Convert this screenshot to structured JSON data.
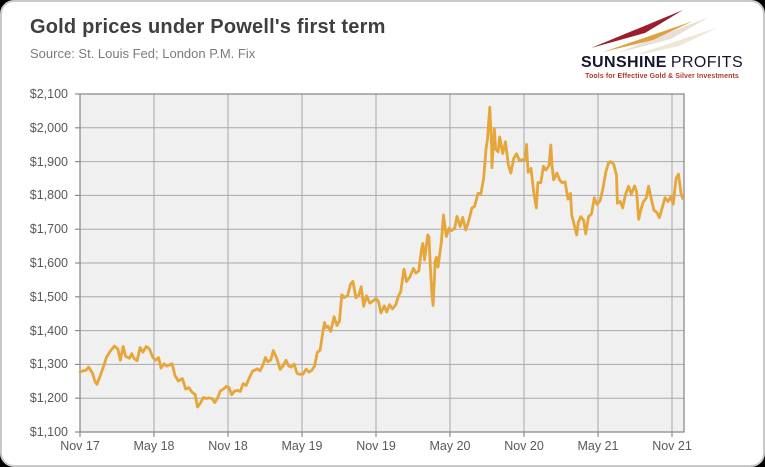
{
  "header": {
    "title": "Gold prices under Powell's first term",
    "source": "Source: St. Louis Fed; London P.M. Fix"
  },
  "logo": {
    "name_bold": "SUNSHINE",
    "name_regular": "PROFITS",
    "tagline": "Tools for Effective Gold & Silver Investments",
    "colors": {
      "maroon": "#9b1d2e",
      "gold": "#d9a441",
      "navy": "#15152e",
      "tagline_red": "#b23a2f"
    }
  },
  "chart_data": {
    "type": "line",
    "title": "Gold prices under Powell's first term",
    "xlabel": "",
    "ylabel": "",
    "ylim": [
      1100,
      2100
    ],
    "ytick_step": 100,
    "ytick_labels": [
      "$2,100",
      "$2,000",
      "$1,900",
      "$1,800",
      "$1,700",
      "$1,600",
      "$1,500",
      "$1,400",
      "$1,300",
      "$1,200",
      "$1,100"
    ],
    "xtick_labels": [
      "Nov 17",
      "May 18",
      "Nov 18",
      "May 19",
      "Nov 19",
      "May 20",
      "Nov 20",
      "May 21",
      "Nov 21"
    ],
    "x_encoding": "months since Nov 2017, ticks every 6 months",
    "x_range": [
      0,
      48.9
    ],
    "grid": true,
    "legend": "none",
    "colors": {
      "line": "#E6A63A",
      "plot_bg": "#F0F0F0",
      "grid": "#A9A9A9",
      "frame": "#8C8C8C",
      "axis_text": "#595959"
    },
    "points": [
      [
        0,
        1277
      ],
      [
        0.23,
        1281
      ],
      [
        0.47,
        1282
      ],
      [
        0.7,
        1292
      ],
      [
        1,
        1275
      ],
      [
        1.23,
        1248
      ],
      [
        1.37,
        1241
      ],
      [
        1.63,
        1265
      ],
      [
        1.93,
        1296
      ],
      [
        2.13,
        1320
      ],
      [
        2.47,
        1340
      ],
      [
        2.8,
        1354
      ],
      [
        3.07,
        1345
      ],
      [
        3.27,
        1312
      ],
      [
        3.5,
        1353
      ],
      [
        3.7,
        1324
      ],
      [
        4,
        1318
      ],
      [
        4.2,
        1332
      ],
      [
        4.37,
        1318
      ],
      [
        4.63,
        1311
      ],
      [
        4.87,
        1350
      ],
      [
        5.1,
        1336
      ],
      [
        5.37,
        1353
      ],
      [
        5.63,
        1346
      ],
      [
        5.9,
        1321
      ],
      [
        6.13,
        1312
      ],
      [
        6.37,
        1320
      ],
      [
        6.57,
        1289
      ],
      [
        6.83,
        1302
      ],
      [
        7.03,
        1295
      ],
      [
        7.27,
        1299
      ],
      [
        7.47,
        1302
      ],
      [
        7.7,
        1267
      ],
      [
        7.97,
        1251
      ],
      [
        8.3,
        1258
      ],
      [
        8.57,
        1227
      ],
      [
        8.83,
        1231
      ],
      [
        9.07,
        1218
      ],
      [
        9.33,
        1211
      ],
      [
        9.53,
        1174
      ],
      [
        9.8,
        1188
      ],
      [
        10,
        1202
      ],
      [
        10.23,
        1199
      ],
      [
        10.47,
        1201
      ],
      [
        10.7,
        1199
      ],
      [
        10.93,
        1187
      ],
      [
        11.17,
        1202
      ],
      [
        11.37,
        1221
      ],
      [
        11.63,
        1227
      ],
      [
        11.87,
        1235
      ],
      [
        12.07,
        1232
      ],
      [
        12.3,
        1210
      ],
      [
        12.53,
        1221
      ],
      [
        12.77,
        1223
      ],
      [
        13,
        1220
      ],
      [
        13.23,
        1243
      ],
      [
        13.47,
        1238
      ],
      [
        13.7,
        1258
      ],
      [
        14,
        1281
      ],
      [
        14.13,
        1282
      ],
      [
        14.37,
        1287
      ],
      [
        14.6,
        1281
      ],
      [
        14.83,
        1298
      ],
      [
        15.03,
        1320
      ],
      [
        15.23,
        1308
      ],
      [
        15.47,
        1313
      ],
      [
        15.67,
        1341
      ],
      [
        15.93,
        1320
      ],
      [
        16.23,
        1285
      ],
      [
        16.47,
        1296
      ],
      [
        16.7,
        1312
      ],
      [
        16.93,
        1295
      ],
      [
        17.13,
        1292
      ],
      [
        17.37,
        1301
      ],
      [
        17.6,
        1273
      ],
      [
        17.77,
        1271
      ],
      [
        18.07,
        1271
      ],
      [
        18.33,
        1286
      ],
      [
        18.57,
        1277
      ],
      [
        18.8,
        1283
      ],
      [
        19.03,
        1296
      ],
      [
        19.23,
        1335
      ],
      [
        19.47,
        1342
      ],
      [
        19.7,
        1399
      ],
      [
        19.83,
        1424
      ],
      [
        19.93,
        1409
      ],
      [
        20.1,
        1413
      ],
      [
        20.33,
        1398
      ],
      [
        20.6,
        1441
      ],
      [
        20.83,
        1415
      ],
      [
        21.03,
        1427
      ],
      [
        21.23,
        1506
      ],
      [
        21.43,
        1498
      ],
      [
        21.7,
        1503
      ],
      [
        21.93,
        1537
      ],
      [
        22.13,
        1546
      ],
      [
        22.37,
        1497
      ],
      [
        22.6,
        1504
      ],
      [
        22.8,
        1530
      ],
      [
        23,
        1472
      ],
      [
        23.23,
        1503
      ],
      [
        23.5,
        1481
      ],
      [
        23.73,
        1487
      ],
      [
        24,
        1495
      ],
      [
        24.2,
        1486
      ],
      [
        24.4,
        1452
      ],
      [
        24.67,
        1473
      ],
      [
        24.87,
        1455
      ],
      [
        25.1,
        1477
      ],
      [
        25.33,
        1464
      ],
      [
        25.6,
        1476
      ],
      [
        25.8,
        1500
      ],
      [
        26,
        1515
      ],
      [
        26.27,
        1582
      ],
      [
        26.47,
        1545
      ],
      [
        26.73,
        1558
      ],
      [
        27.03,
        1584
      ],
      [
        27.23,
        1570
      ],
      [
        27.47,
        1577
      ],
      [
        27.7,
        1643
      ],
      [
        27.8,
        1658
      ],
      [
        27.93,
        1609
      ],
      [
        28.2,
        1683
      ],
      [
        28.3,
        1676
      ],
      [
        28.4,
        1590
      ],
      [
        28.53,
        1509
      ],
      [
        28.63,
        1474
      ],
      [
        28.8,
        1605
      ],
      [
        28.9,
        1617
      ],
      [
        29.03,
        1588
      ],
      [
        29.3,
        1662
      ],
      [
        29.47,
        1742
      ],
      [
        29.7,
        1678
      ],
      [
        29.93,
        1703
      ],
      [
        30.13,
        1696
      ],
      [
        30.37,
        1702
      ],
      [
        30.57,
        1738
      ],
      [
        30.83,
        1708
      ],
      [
        31.03,
        1735
      ],
      [
        31.27,
        1698
      ],
      [
        31.5,
        1722
      ],
      [
        31.77,
        1762
      ],
      [
        32,
        1768
      ],
      [
        32.27,
        1806
      ],
      [
        32.5,
        1804
      ],
      [
        32.73,
        1851
      ],
      [
        32.93,
        1940
      ],
      [
        33.03,
        1964
      ],
      [
        33.17,
        2034
      ],
      [
        33.23,
        2061
      ],
      [
        33.37,
        1945
      ],
      [
        33.4,
        1882
      ],
      [
        33.6,
        1997
      ],
      [
        33.7,
        1937
      ],
      [
        33.9,
        1929
      ],
      [
        34.03,
        1973
      ],
      [
        34.27,
        1924
      ],
      [
        34.5,
        1959
      ],
      [
        34.73,
        1891
      ],
      [
        34.93,
        1866
      ],
      [
        35.17,
        1910
      ],
      [
        35.4,
        1923
      ],
      [
        35.63,
        1903
      ],
      [
        35.9,
        1906
      ],
      [
        36.13,
        1906
      ],
      [
        36.2,
        1951
      ],
      [
        36.33,
        1868
      ],
      [
        36.57,
        1880
      ],
      [
        36.8,
        1805
      ],
      [
        37,
        1763
      ],
      [
        37.13,
        1838
      ],
      [
        37.37,
        1838
      ],
      [
        37.57,
        1886
      ],
      [
        37.77,
        1875
      ],
      [
        38.03,
        1888
      ],
      [
        38.17,
        1949
      ],
      [
        38.27,
        1890
      ],
      [
        38.4,
        1846
      ],
      [
        38.67,
        1866
      ],
      [
        38.9,
        1845
      ],
      [
        39.07,
        1838
      ],
      [
        39.33,
        1840
      ],
      [
        39.57,
        1789
      ],
      [
        39.77,
        1806
      ],
      [
        39.87,
        1742
      ],
      [
        40.17,
        1699
      ],
      [
        40.27,
        1683
      ],
      [
        40.4,
        1720
      ],
      [
        40.6,
        1737
      ],
      [
        40.83,
        1727
      ],
      [
        41,
        1686
      ],
      [
        41.23,
        1737
      ],
      [
        41.47,
        1745
      ],
      [
        41.7,
        1793
      ],
      [
        41.93,
        1773
      ],
      [
        42.17,
        1784
      ],
      [
        42.4,
        1820
      ],
      [
        42.63,
        1869
      ],
      [
        42.87,
        1898
      ],
      [
        43.03,
        1900
      ],
      [
        43.27,
        1892
      ],
      [
        43.5,
        1860
      ],
      [
        43.57,
        1777
      ],
      [
        43.8,
        1782
      ],
      [
        44,
        1763
      ],
      [
        44.23,
        1803
      ],
      [
        44.47,
        1827
      ],
      [
        44.7,
        1804
      ],
      [
        44.97,
        1828
      ],
      [
        45.13,
        1811
      ],
      [
        45.3,
        1729
      ],
      [
        45.43,
        1752
      ],
      [
        45.67,
        1781
      ],
      [
        45.9,
        1791
      ],
      [
        46.1,
        1827
      ],
      [
        46.33,
        1788
      ],
      [
        46.53,
        1756
      ],
      [
        46.77,
        1750
      ],
      [
        46.97,
        1734
      ],
      [
        47.2,
        1762
      ],
      [
        47.43,
        1793
      ],
      [
        47.67,
        1782
      ],
      [
        47.9,
        1796
      ],
      [
        48.1,
        1774
      ],
      [
        48.33,
        1850
      ],
      [
        48.53,
        1863
      ],
      [
        48.73,
        1806
      ],
      [
        48.87,
        1791
      ]
    ]
  }
}
